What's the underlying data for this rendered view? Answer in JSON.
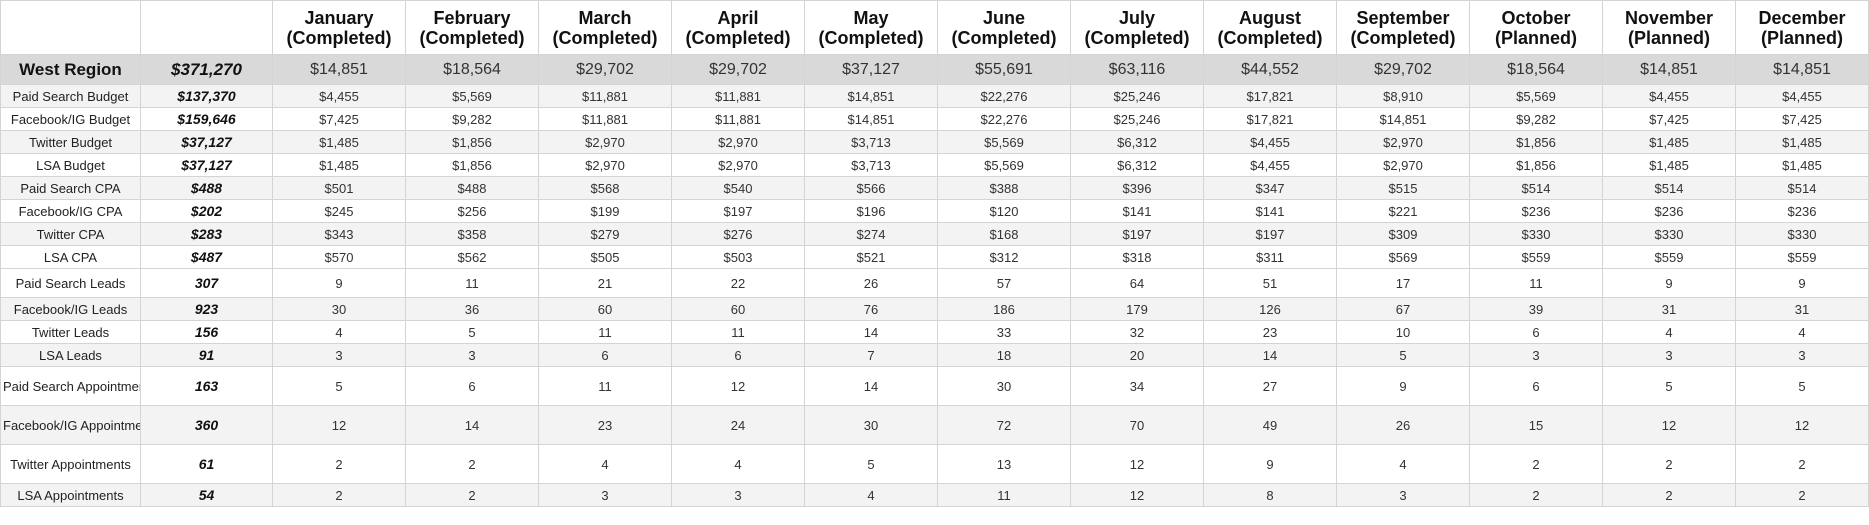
{
  "header": {
    "corner": "",
    "total": "",
    "months": [
      {
        "name": "January",
        "status": "(Completed)"
      },
      {
        "name": "February",
        "status": "(Completed)"
      },
      {
        "name": "March",
        "status": "(Completed)"
      },
      {
        "name": "April",
        "status": "(Completed)"
      },
      {
        "name": "May",
        "status": "(Completed)"
      },
      {
        "name": "June",
        "status": "(Completed)"
      },
      {
        "name": "July",
        "status": "(Completed)"
      },
      {
        "name": "August",
        "status": "(Completed)"
      },
      {
        "name": "September",
        "status": "(Completed)"
      },
      {
        "name": "October",
        "status": "(Planned)"
      },
      {
        "name": "November",
        "status": "(Planned)"
      },
      {
        "name": "December",
        "status": "(Planned)"
      }
    ]
  },
  "rows": [
    {
      "label": "West Region",
      "total": "$371,270",
      "values": [
        "$14,851",
        "$18,564",
        "$29,702",
        "$29,702",
        "$37,127",
        "$55,691",
        "$63,116",
        "$44,552",
        "$29,702",
        "$18,564",
        "$14,851",
        "$14,851"
      ]
    },
    {
      "label": "Paid Search Budget",
      "total": "$137,370",
      "values": [
        "$4,455",
        "$5,569",
        "$11,881",
        "$11,881",
        "$14,851",
        "$22,276",
        "$25,246",
        "$17,821",
        "$8,910",
        "$5,569",
        "$4,455",
        "$4,455"
      ]
    },
    {
      "label": "Facebook/IG Budget",
      "total": "$159,646",
      "values": [
        "$7,425",
        "$9,282",
        "$11,881",
        "$11,881",
        "$14,851",
        "$22,276",
        "$25,246",
        "$17,821",
        "$14,851",
        "$9,282",
        "$7,425",
        "$7,425"
      ]
    },
    {
      "label": "Twitter Budget",
      "total": "$37,127",
      "values": [
        "$1,485",
        "$1,856",
        "$2,970",
        "$2,970",
        "$3,713",
        "$5,569",
        "$6,312",
        "$4,455",
        "$2,970",
        "$1,856",
        "$1,485",
        "$1,485"
      ]
    },
    {
      "label": "LSA Budget",
      "total": "$37,127",
      "values": [
        "$1,485",
        "$1,856",
        "$2,970",
        "$2,970",
        "$3,713",
        "$5,569",
        "$6,312",
        "$4,455",
        "$2,970",
        "$1,856",
        "$1,485",
        "$1,485"
      ]
    },
    {
      "label": "Paid Search CPA",
      "total": "$488",
      "values": [
        "$501",
        "$488",
        "$568",
        "$540",
        "$566",
        "$388",
        "$396",
        "$347",
        "$515",
        "$514",
        "$514",
        "$514"
      ]
    },
    {
      "label": "Facebook/IG CPA",
      "total": "$202",
      "values": [
        "$245",
        "$256",
        "$199",
        "$197",
        "$196",
        "$120",
        "$141",
        "$141",
        "$221",
        "$236",
        "$236",
        "$236"
      ]
    },
    {
      "label": "Twitter CPA",
      "total": "$283",
      "values": [
        "$343",
        "$358",
        "$279",
        "$276",
        "$274",
        "$168",
        "$197",
        "$197",
        "$309",
        "$330",
        "$330",
        "$330"
      ]
    },
    {
      "label": "LSA CPA",
      "total": "$487",
      "values": [
        "$570",
        "$562",
        "$505",
        "$503",
        "$521",
        "$312",
        "$318",
        "$311",
        "$569",
        "$559",
        "$559",
        "$559"
      ]
    },
    {
      "label": "Paid Search Leads",
      "total": "307",
      "values": [
        "9",
        "11",
        "21",
        "22",
        "26",
        "57",
        "64",
        "51",
        "17",
        "11",
        "9",
        "9"
      ]
    },
    {
      "label": "Facebook/IG Leads",
      "total": "923",
      "values": [
        "30",
        "36",
        "60",
        "60",
        "76",
        "186",
        "179",
        "126",
        "67",
        "39",
        "31",
        "31"
      ]
    },
    {
      "label": "Twitter Leads",
      "total": "156",
      "values": [
        "4",
        "5",
        "11",
        "11",
        "14",
        "33",
        "32",
        "23",
        "10",
        "6",
        "4",
        "4"
      ]
    },
    {
      "label": "LSA Leads",
      "total": "91",
      "values": [
        "3",
        "3",
        "6",
        "6",
        "7",
        "18",
        "20",
        "14",
        "5",
        "3",
        "3",
        "3"
      ]
    },
    {
      "label": "Paid Search Appointments",
      "total": "163",
      "values": [
        "5",
        "6",
        "11",
        "12",
        "14",
        "30",
        "34",
        "27",
        "9",
        "6",
        "5",
        "5"
      ]
    },
    {
      "label": "Facebook/IG Appointments",
      "total": "360",
      "values": [
        "12",
        "14",
        "23",
        "24",
        "30",
        "72",
        "70",
        "49",
        "26",
        "15",
        "12",
        "12"
      ]
    },
    {
      "label": "Twitter Appointments",
      "total": "61",
      "values": [
        "2",
        "2",
        "4",
        "4",
        "5",
        "13",
        "12",
        "9",
        "4",
        "2",
        "2",
        "2"
      ]
    },
    {
      "label": "LSA Appointments",
      "total": "54",
      "values": [
        "2",
        "2",
        "3",
        "3",
        "4",
        "11",
        "12",
        "8",
        "3",
        "2",
        "2",
        "2"
      ]
    }
  ]
}
